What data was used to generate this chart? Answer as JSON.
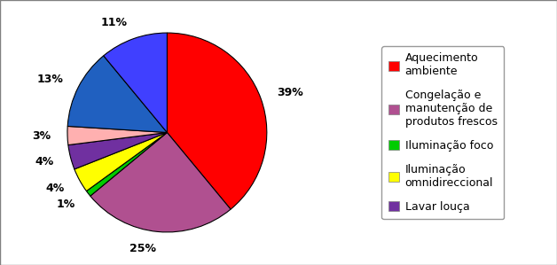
{
  "slices": [
    39,
    25,
    1,
    4,
    4,
    3,
    13,
    11
  ],
  "colors": [
    "#FF0000",
    "#B05090",
    "#00CC00",
    "#FFFF00",
    "#7030A0",
    "#FFB0B0",
    "#2060C0",
    "#4040FF"
  ],
  "pct_labels": [
    "39%",
    "25%",
    "1%",
    "4%",
    "4%",
    "3%",
    "13%",
    "11%"
  ],
  "legend_entries": [
    {
      "label": "Aquecimento\nambiente",
      "color": "#FF0000"
    },
    {
      "label": "Congelação e\nmanutenção de\nprodutos frescos",
      "color": "#B05090"
    },
    {
      "label": "Iluminação foco",
      "color": "#00CC00"
    },
    {
      "label": "Iluminação\nomnidireccional",
      "color": "#FFFF00"
    },
    {
      "label": "Lavar louça",
      "color": "#7030A0"
    }
  ],
  "startangle": 90,
  "label_fontsize": 9,
  "legend_fontsize": 9,
  "bg_color": "#FFFFFF",
  "edge_color": "#000000",
  "border_color": "#808080"
}
